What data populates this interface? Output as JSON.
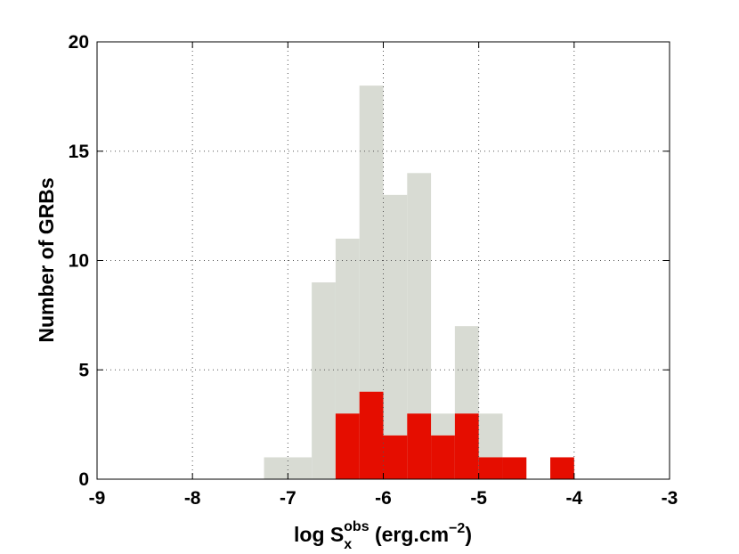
{
  "chart_data": {
    "type": "histogram",
    "bins": [
      -7.25,
      -7.0,
      -6.75,
      -6.5,
      -6.25,
      -6.0,
      -5.75,
      -5.5,
      -5.25,
      -5.0,
      -4.75,
      -4.5,
      -4.25,
      -4.0
    ],
    "series": [
      {
        "color": "#d8dbd3",
        "values": [
          1,
          1,
          9,
          11,
          18,
          13,
          14,
          3,
          7,
          3,
          1,
          0,
          1
        ]
      },
      {
        "color": "#e50d00",
        "values": [
          0,
          0,
          0,
          3,
          4,
          2,
          3,
          2,
          3,
          1,
          1,
          0,
          1
        ]
      }
    ],
    "x_label": {
      "base": "log S",
      "sub": "x",
      "sup": "obs",
      "unit": " (erg.cm",
      "unit_sup": "−2",
      "unit_end": ")"
    },
    "y_label": "Number of GRBs",
    "xlim": [
      -9,
      -3
    ],
    "xticks": [
      -9,
      -8,
      -7,
      -6,
      -5,
      -4,
      -3
    ],
    "ylim": [
      0,
      20
    ],
    "yticks": [
      0,
      5,
      10,
      15,
      20
    ],
    "grid": true
  }
}
